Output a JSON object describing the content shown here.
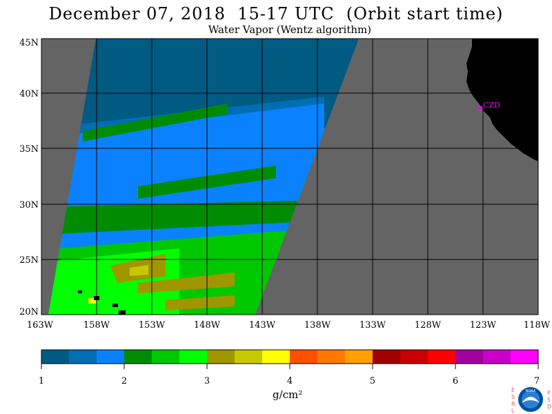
{
  "title": "December 07, 2018  15-17 UTC  (Orbit start time)",
  "subtitle": "Water Vapor (Wentz algorithm)",
  "map": {
    "lat_labels": [
      "45N",
      "40N",
      "35N",
      "30N",
      "25N",
      "20N"
    ],
    "lon_labels": [
      "163W",
      "158W",
      "153W",
      "148W",
      "143W",
      "138W",
      "133W",
      "128W",
      "123W",
      "118W"
    ],
    "station_label": "CZD",
    "colors": {
      "no_data": "#646464",
      "land": "#000000",
      "grid": "#000000",
      "station": "#ff00ff"
    }
  },
  "colorbar": {
    "labels": [
      "1",
      "2",
      "3",
      "4",
      "5",
      "6",
      "7"
    ],
    "unit": "g/cm²",
    "colors": [
      "#005a82",
      "#006eb4",
      "#0a82ff",
      "#008c00",
      "#00c800",
      "#00ff00",
      "#a09600",
      "#c8c800",
      "#ffff00",
      "#ff5000",
      "#ff7800",
      "#ffa000",
      "#a00000",
      "#c80000",
      "#ff0000",
      "#a000a0",
      "#c800c8",
      "#ff00ff"
    ]
  },
  "logo": {
    "left_letters": [
      "E",
      "S",
      "R",
      "L"
    ],
    "right_letters": [
      "P",
      "S",
      "D"
    ],
    "text": "NOAA",
    "colors": {
      "letters": "#ff5050",
      "ring": "#0050a0",
      "bird": "#ffffff"
    }
  }
}
